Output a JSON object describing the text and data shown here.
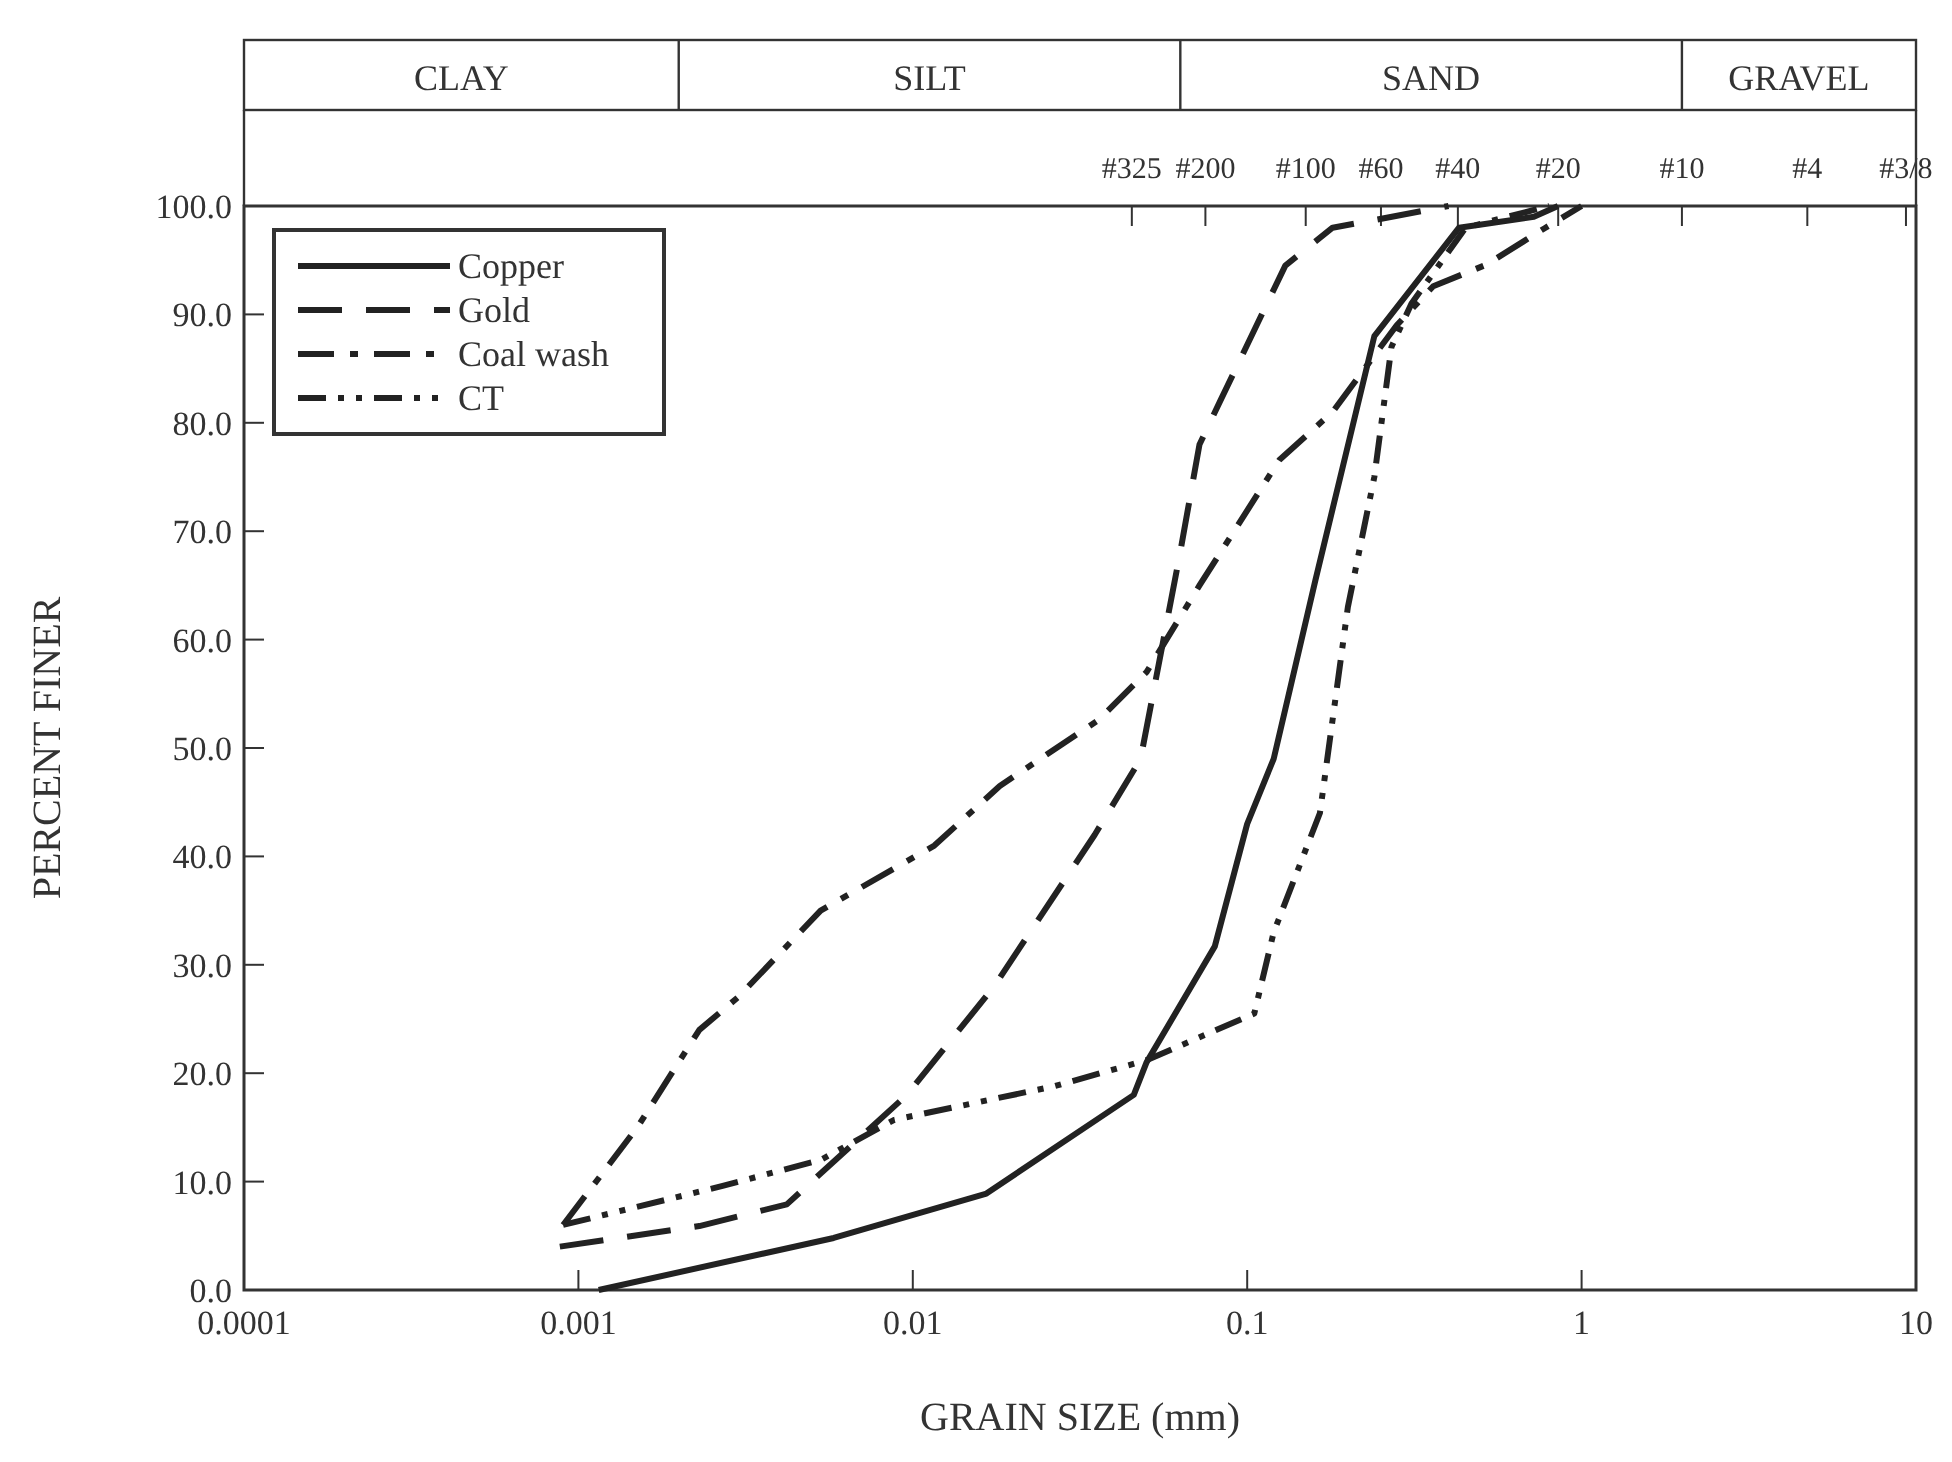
{
  "chart_data": {
    "type": "line",
    "xlabel": "GRAIN SIZE (mm)",
    "ylabel": "PERCENT FINER",
    "log": "x",
    "xlim": [
      0.0001,
      10
    ],
    "xticks": [
      0.0001,
      0.001,
      0.01,
      0.1,
      1,
      10
    ],
    "ylim": [
      0,
      100
    ],
    "yticks": [
      {
        "value": 0,
        "label": "0.0"
      },
      {
        "value": 10,
        "label": "10.0"
      },
      {
        "value": 20,
        "label": "20.0"
      },
      {
        "value": 30,
        "label": "30.0"
      },
      {
        "value": 40,
        "label": "40.0"
      },
      {
        "value": 50,
        "label": "50.0"
      },
      {
        "value": 60,
        "label": "60.0"
      },
      {
        "value": 70,
        "label": "70.0"
      },
      {
        "value": 80,
        "label": "80.0"
      },
      {
        "value": 90,
        "label": "90.0"
      },
      {
        "value": 100,
        "label": "100.0"
      }
    ],
    "annotations": [
      "CLAY",
      "SILT",
      "SAND",
      "GRAVEL",
      "#325",
      "#200",
      "#100",
      "#60",
      "#40",
      "#20",
      "#10",
      "#4",
      "#3/8"
    ],
    "grid": false,
    "legend": "top left",
    "marker": "none",
    "series": [
      {
        "name": "Copper",
        "color": "#222222",
        "line_style": "solid",
        "x": [
          0.00115,
          0.0058,
          0.0166,
          0.0458,
          0.05,
          0.08,
          0.1,
          0.12,
          0.16,
          0.24,
          0.43,
          0.72,
          0.85
        ],
        "values": [
          0,
          4.8,
          8.9,
          18,
          21,
          31.7,
          43,
          49,
          65.5,
          88,
          98,
          99,
          100
        ]
      },
      {
        "name": "Gold",
        "color": "#222222",
        "line_style": "dashed",
        "x": [
          0.00088,
          0.0023,
          0.0042,
          0.0096,
          0.0175,
          0.035,
          0.048,
          0.063,
          0.072,
          0.083,
          0.13,
          0.18,
          0.24,
          0.4
        ],
        "values": [
          4,
          5.9,
          7.9,
          18,
          28,
          42,
          49,
          68,
          78,
          82,
          94.5,
          98,
          98.7,
          100
        ]
      },
      {
        "name": "Coal wash",
        "color": "#222222",
        "line_style": "dashdot",
        "x": [
          0.0009,
          0.0015,
          0.0023,
          0.003,
          0.0053,
          0.0116,
          0.0182,
          0.036,
          0.05,
          0.072,
          0.125,
          0.18,
          0.28,
          0.36,
          0.52,
          0.78,
          1
        ],
        "values": [
          6,
          15,
          24,
          27,
          35,
          41,
          46.5,
          52.6,
          57,
          65,
          76.6,
          81,
          89,
          92.6,
          94.6,
          98,
          100
        ]
      },
      {
        "name": "CT",
        "color": "#222222",
        "line_style": "dashdotdot",
        "x": [
          0.0009,
          0.0027,
          0.0053,
          0.0088,
          0.0265,
          0.05,
          0.105,
          0.12,
          0.165,
          0.2,
          0.24,
          0.27,
          0.31,
          0.45,
          0.8
        ],
        "values": [
          6,
          9.6,
          12,
          15.7,
          18.8,
          21.2,
          25.5,
          33,
          44,
          63,
          75,
          87,
          91,
          98,
          100
        ]
      }
    ]
  }
}
